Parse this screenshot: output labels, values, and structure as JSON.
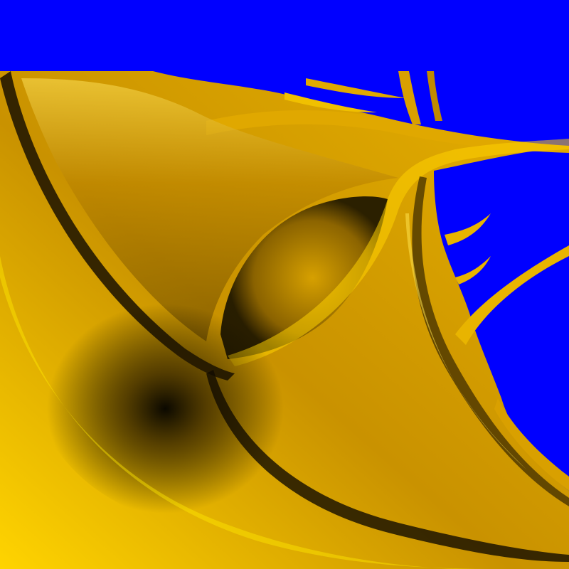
{
  "image": {
    "subject": "fractal-rendering",
    "colors": {
      "escape_region": "#0000ff",
      "gold_light": "#ffe000",
      "gold_mid": "#d9a400",
      "gold_dark": "#8a6400",
      "ridge": "#000000"
    }
  }
}
